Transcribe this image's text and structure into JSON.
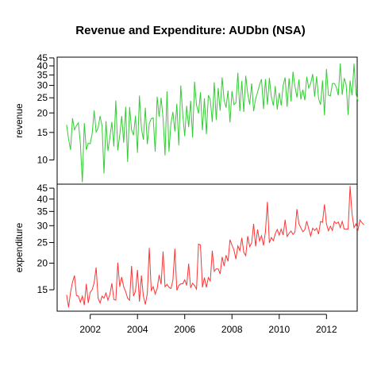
{
  "chart_data": [
    {
      "type": "line",
      "title": "Revenue and Expenditure: AUDbn (NSA)",
      "ylabel": "revenue",
      "scale": "log",
      "color": "#33cc33",
      "yticks": [
        10,
        15,
        20,
        25,
        30,
        35,
        40,
        45
      ],
      "ylim": [
        7.0,
        45.5
      ],
      "x_start": 2001.0,
      "x_step": 0.08333,
      "values": [
        16.8,
        13.6,
        11.6,
        18.5,
        15.6,
        16.6,
        17.3,
        12.7,
        7.2,
        17.2,
        11.6,
        12.8,
        12.7,
        14.8,
        20.7,
        15.1,
        16.0,
        19.1,
        16.5,
        8.2,
        17.7,
        11.4,
        14.0,
        17.5,
        12.2,
        24.0,
        11.5,
        14.4,
        19.1,
        12.9,
        21.9,
        9.7,
        21.8,
        15.6,
        14.4,
        19.2,
        11.1,
        25.8,
        15.9,
        13.5,
        21.6,
        12.6,
        17.1,
        18.4,
        18.6,
        11.3,
        25.4,
        18.9,
        25.0,
        18.5,
        10.7,
        27.5,
        11.3,
        17.1,
        20.3,
        15.2,
        22.9,
        12.4,
        30.0,
        19.5,
        14.2,
        22.2,
        16.2,
        23.9,
        13.9,
        31.7,
        22.4,
        19.8,
        27.1,
        15.5,
        24.8,
        14.6,
        26.0,
        24.3,
        17.5,
        31.4,
        18.0,
        28.9,
        20.7,
        33.8,
        24.2,
        21.6,
        27.8,
        17.4,
        27.6,
        22.6,
        23.2,
        36.2,
        20.5,
        32.0,
        20.3,
        34.6,
        26.5,
        22.6,
        30.9,
        20.5,
        24.6,
        27.1,
        30.3,
        32.9,
        21.2,
        32.9,
        22.6,
        33.5,
        25.3,
        22.3,
        29.7,
        21.0,
        26.9,
        22.3,
        30.1,
        33.7,
        21.9,
        33.3,
        23.7,
        36.7,
        29.6,
        25.1,
        32.7,
        24.4,
        28.2,
        24.1,
        34.1,
        28.8,
        31.0,
        35.5,
        25.4,
        34.3,
        24.7,
        22.6,
        32.3,
        19.3,
        38.2,
        26.0,
        25.7,
        30.8,
        30.9,
        29.2,
        25.9,
        41.5,
        26.1,
        33.4,
        30.3,
        19.4,
        32.2,
        25.9,
        41.3,
        26.6,
        23.8
      ]
    },
    {
      "type": "line",
      "ylabel": "expenditure",
      "xlabel": "",
      "scale": "log",
      "color": "#ff3333",
      "xticks": [
        2002,
        2004,
        2006,
        2008,
        2010,
        2012
      ],
      "xlim": [
        2000.6,
        2013.3
      ],
      "yticks": [
        15,
        20,
        25,
        30,
        35,
        40,
        45
      ],
      "ylim": [
        11.9,
        47.0
      ],
      "x_start": 2001.0,
      "x_step": 0.08333,
      "values": [
        14.2,
        12.4,
        14.6,
        16.3,
        17.5,
        14.1,
        14.0,
        13.1,
        14.0,
        12.7,
        16.0,
        13.0,
        14.6,
        15.0,
        16.2,
        19.1,
        13.7,
        13.0,
        14.0,
        13.7,
        14.5,
        13.4,
        14.3,
        16.1,
        13.5,
        13.4,
        20.1,
        15.5,
        17.2,
        15.5,
        14.7,
        13.7,
        13.4,
        19.4,
        14.0,
        14.8,
        18.6,
        13.2,
        17.5,
        14.0,
        12.8,
        14.4,
        23.6,
        14.9,
        15.5,
        14.3,
        15.2,
        17.6,
        15.9,
        22.7,
        15.5,
        15.9,
        15.4,
        15.2,
        16.6,
        23.4,
        14.9,
        15.7,
        16.0,
        16.0,
        16.7,
        15.7,
        19.9,
        15.3,
        16.1,
        15.7,
        15.1,
        24.6,
        24.3,
        15.4,
        17.1,
        15.4,
        17.1,
        16.5,
        22.9,
        18.3,
        18.8,
        18.8,
        17.8,
        21.4,
        19.4,
        21.8,
        20.4,
        25.8,
        24.3,
        23.1,
        20.9,
        24.1,
        22.9,
        26.3,
        22.5,
        21.7,
        26.8,
        23.9,
        24.9,
        30.6,
        24.0,
        28.8,
        25.4,
        26.9,
        24.2,
        28.1,
        38.8,
        24.9,
        26.4,
        25.5,
        27.5,
        28.8,
        27.1,
        28.9,
        27.1,
        32.0,
        26.7,
        27.6,
        28.3,
        27.3,
        28.0,
        35.9,
        30.6,
        29.3,
        28.1,
        28.7,
        31.5,
        29.0,
        26.8,
        29.2,
        28.5,
        29.2,
        27.4,
        31.4,
        31.1,
        37.8,
        30.6,
        28.4,
        29.8,
        28.5,
        31.4,
        30.7,
        31.2,
        29.4,
        31.4,
        28.9,
        28.9,
        28.9,
        46.1,
        34.0,
        29.4,
        30.6,
        28.7,
        31.9,
        31.0,
        30.3
      ]
    }
  ]
}
